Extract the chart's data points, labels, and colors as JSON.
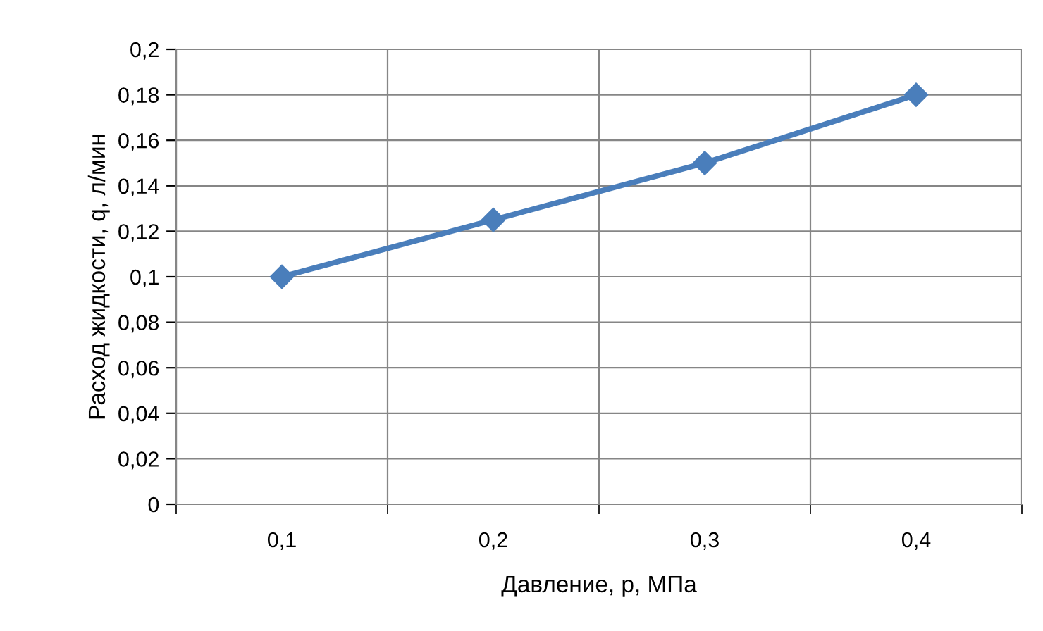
{
  "chart_data": {
    "type": "line",
    "xlabel": "Давление, p, МПа",
    "ylabel": "Расход жидкости, q, л/мин",
    "categories": [
      "0,1",
      "0,2",
      "0,3",
      "0,4"
    ],
    "series": [
      {
        "color": "#4a7ebb",
        "values": [
          0.1,
          0.125,
          0.15,
          0.18
        ]
      }
    ],
    "ylim": [
      0,
      0.2
    ],
    "yticks": [
      0,
      {
        "value": 0.02,
        "label": "0,02"
      },
      {
        "value": 0.04,
        "label": "0,04"
      },
      {
        "value": 0.06,
        "label": "0,06"
      },
      {
        "value": 0.08,
        "label": "0,08"
      },
      {
        "value": 0.1,
        "label": "0,1"
      },
      {
        "value": 0.12,
        "label": "0,12"
      },
      {
        "value": 0.14,
        "label": "0,14"
      },
      {
        "value": 0.16,
        "label": "0,16"
      },
      {
        "value": 0.18,
        "label": "0,18"
      },
      {
        "value": 0.2,
        "label": "0,2"
      }
    ],
    "grid": true,
    "marker": "diamond",
    "line_style": "solid"
  }
}
